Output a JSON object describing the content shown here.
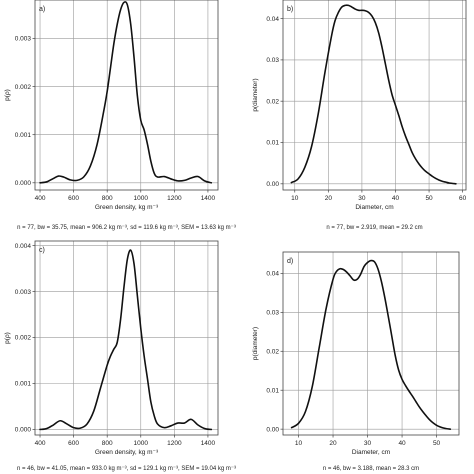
{
  "chart_data": [
    {
      "type": "line",
      "panel_label": "a)",
      "xlabel": "Green density, kg m⁻³",
      "ylabel": "p(ρ)",
      "xlim": [
        370,
        1460
      ],
      "ylim": [
        -0.00015,
        0.0038
      ],
      "xticks": [
        400,
        600,
        800,
        1000,
        1200,
        1400
      ],
      "yticks": [
        0.0,
        0.001,
        0.002,
        0.003
      ],
      "ytick_labels": [
        "0.000",
        "0.001",
        "0.002",
        "0.003"
      ],
      "grid": true,
      "caption": "n = 77, bw = 35.75, mean = 906.2 kg m⁻³, sd = 119.6 kg m⁻³, SEM = 13.63 kg m⁻³",
      "x": [
        400,
        440,
        480,
        510,
        540,
        580,
        620,
        660,
        700,
        740,
        780,
        800,
        820,
        840,
        860,
        880,
        900,
        920,
        940,
        960,
        980,
        1000,
        1020,
        1040,
        1060,
        1080,
        1100,
        1140,
        1180,
        1220,
        1260,
        1300,
        1340,
        1380,
        1420
      ],
      "y": [
        0.0,
        2e-05,
        9e-05,
        0.00014,
        0.00012,
        6e-05,
        5e-05,
        0.00012,
        0.00035,
        0.0008,
        0.0015,
        0.0019,
        0.0024,
        0.0029,
        0.0033,
        0.0036,
        0.00375,
        0.0037,
        0.0033,
        0.0026,
        0.0018,
        0.0013,
        0.0011,
        0.0008,
        0.00045,
        0.0002,
        0.00012,
        0.00013,
        8e-05,
        4e-05,
        5e-05,
        0.0001,
        0.00013,
        4e-05,
        0.0
      ]
    },
    {
      "type": "line",
      "panel_label": "b)",
      "xlabel": "Diameter, cm",
      "ylabel": "p(diameter)",
      "xlim": [
        6.5,
        61
      ],
      "ylim": [
        -0.0015,
        0.0445
      ],
      "xticks": [
        10,
        20,
        30,
        40,
        50,
        60
      ],
      "yticks": [
        0.0,
        0.01,
        0.02,
        0.03,
        0.04
      ],
      "ytick_labels": [
        "0.00",
        "0.01",
        "0.02",
        "0.03",
        "0.04"
      ],
      "grid": true,
      "caption": "n = 77, bw = 2.919, mean = 29.2 cm",
      "x": [
        9,
        11,
        13,
        15,
        17,
        19,
        21,
        22,
        23,
        24,
        25,
        26,
        27,
        28,
        29,
        30,
        31,
        32,
        33,
        34,
        35,
        36,
        37,
        38,
        39,
        40,
        41,
        42,
        43,
        44,
        45,
        46,
        47,
        48,
        49,
        50,
        51,
        52,
        53,
        54,
        55,
        56,
        58
      ],
      "y": [
        0.0003,
        0.0012,
        0.004,
        0.009,
        0.017,
        0.027,
        0.036,
        0.0395,
        0.0415,
        0.0428,
        0.0432,
        0.0432,
        0.0428,
        0.0423,
        0.042,
        0.042,
        0.0419,
        0.0415,
        0.0406,
        0.039,
        0.0365,
        0.033,
        0.029,
        0.025,
        0.0215,
        0.019,
        0.0165,
        0.0138,
        0.0115,
        0.0095,
        0.0075,
        0.006,
        0.0048,
        0.0038,
        0.003,
        0.0024,
        0.0018,
        0.0013,
        0.0009,
        0.0006,
        0.0004,
        0.0002,
        0.0
      ]
    },
    {
      "type": "line",
      "panel_label": "c)",
      "xlabel": "Green density, kg m⁻³",
      "ylabel": "p(ρ)",
      "xlim": [
        370,
        1460
      ],
      "ylim": [
        -0.00012,
        0.0041
      ],
      "xticks": [
        400,
        600,
        800,
        1000,
        1200,
        1400
      ],
      "yticks": [
        0.0,
        0.001,
        0.002,
        0.003,
        0.004
      ],
      "ytick_labels": [
        "0.000",
        "0.001",
        "0.002",
        "0.003",
        "0.004"
      ],
      "grid": true,
      "caption": "n = 46, bw = 41.05, mean = 933.0 kg m⁻³, sd = 129.1 kg m⁻³, SEM = 19.04 kg m⁻³",
      "x": [
        400,
        440,
        480,
        520,
        560,
        600,
        640,
        680,
        720,
        760,
        800,
        820,
        840,
        860,
        880,
        900,
        920,
        940,
        960,
        980,
        1000,
        1020,
        1040,
        1060,
        1080,
        1100,
        1140,
        1180,
        1220,
        1260,
        1300,
        1340,
        1380,
        1420
      ],
      "y": [
        0.0,
        2e-05,
        0.0001,
        0.00019,
        0.00012,
        4e-05,
        3e-05,
        0.00012,
        0.0004,
        0.0009,
        0.0014,
        0.0016,
        0.00175,
        0.0019,
        0.0024,
        0.0031,
        0.0037,
        0.0039,
        0.0036,
        0.0029,
        0.0022,
        0.0016,
        0.0011,
        0.0006,
        0.0003,
        0.00012,
        4e-05,
        8e-05,
        0.00014,
        0.00014,
        0.00022,
        0.0001,
        2e-05,
        0.0
      ]
    },
    {
      "type": "line",
      "panel_label": "d)",
      "xlabel": "Diameter, cm",
      "ylabel": "p(diameter)",
      "xlim": [
        5.5,
        56.5
      ],
      "ylim": [
        -0.0015,
        0.0455
      ],
      "xticks": [
        10,
        20,
        30,
        40,
        50
      ],
      "yticks": [
        0.0,
        0.01,
        0.02,
        0.03,
        0.04
      ],
      "ytick_labels": [
        "0.00",
        "0.01",
        "0.02",
        "0.03",
        "0.04"
      ],
      "grid": true,
      "caption": "n = 46, bw = 3.188, mean = 28.3 cm",
      "x": [
        8,
        10,
        12,
        14,
        16,
        18,
        20,
        21,
        22,
        23,
        24,
        25,
        26,
        27,
        28,
        29,
        30,
        31,
        32,
        33,
        34,
        35,
        36,
        37,
        38,
        39,
        40,
        41,
        42,
        43,
        44,
        45,
        46,
        47,
        48,
        49,
        50,
        51,
        52,
        53,
        54
      ],
      "y": [
        0.0004,
        0.0015,
        0.0045,
        0.011,
        0.021,
        0.031,
        0.0385,
        0.0405,
        0.0412,
        0.041,
        0.0403,
        0.0393,
        0.0383,
        0.0385,
        0.0398,
        0.0418,
        0.0428,
        0.0433,
        0.043,
        0.0412,
        0.038,
        0.0338,
        0.029,
        0.024,
        0.019,
        0.0152,
        0.0128,
        0.0112,
        0.0098,
        0.0085,
        0.0071,
        0.0057,
        0.0045,
        0.0034,
        0.0024,
        0.0016,
        0.001,
        0.0006,
        0.0003,
        0.0001,
        0.0
      ]
    }
  ]
}
